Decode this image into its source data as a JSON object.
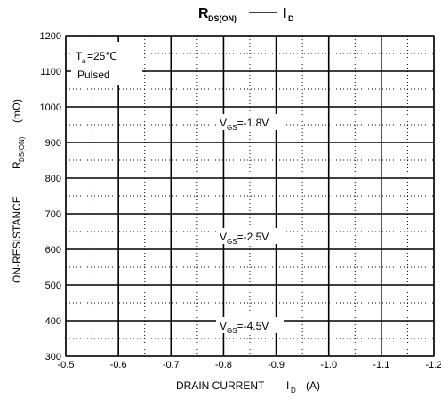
{
  "chart_data": {
    "type": "line",
    "title": {
      "r_main": "R",
      "r_sub": "DS(ON)",
      "i_main": "I",
      "i_sub": "D"
    },
    "xlabel": {
      "main": "DRAIN CURRENT",
      "var": "I",
      "var_sub": "D",
      "unit": "(A)"
    },
    "ylabel": {
      "main": "ON-RESISTANCE",
      "var": "R",
      "var_sub": "DS(ON)",
      "unit": "(mΩ)"
    },
    "xlim": [
      -0.5,
      -1.2
    ],
    "ylim": [
      300,
      1200
    ],
    "x_ticks": [
      "-0.5",
      "-0.6",
      "-0.7",
      "-0.8",
      "-0.9",
      "-1.0",
      "-1.1",
      "-1.2"
    ],
    "y_ticks": [
      "300",
      "400",
      "500",
      "600",
      "700",
      "800",
      "900",
      "1000",
      "1100",
      "1200"
    ],
    "grid": true,
    "conditions": {
      "line1_var": "T",
      "line1_sub": "a",
      "line1_rest": "=25℃",
      "line2": "Pulsed"
    },
    "series": [
      {
        "label_var": "V",
        "label_sub": "GS",
        "label_rest": "=-1.8V",
        "label_x": -0.85,
        "label_y": 950,
        "x": [],
        "y": []
      },
      {
        "label_var": "V",
        "label_sub": "GS",
        "label_rest": "=-2.5V",
        "label_x": -0.85,
        "label_y": 630,
        "x": [],
        "y": []
      },
      {
        "label_var": "V",
        "label_sub": "GS",
        "label_rest": "=-4.5V",
        "label_x": -0.85,
        "label_y": 380,
        "x": [],
        "y": []
      }
    ]
  }
}
